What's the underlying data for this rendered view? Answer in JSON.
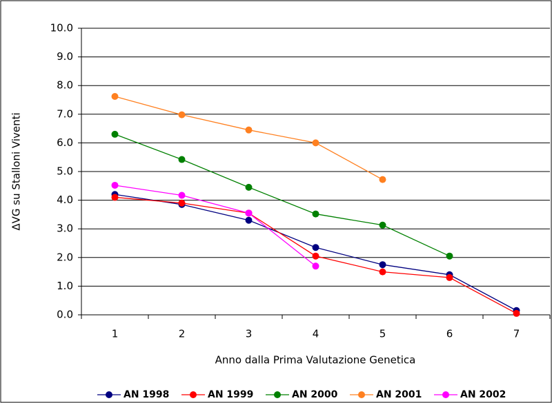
{
  "chart_data": {
    "type": "line",
    "x_label": "Anno dalla Prima Valutazione Genetica",
    "y_label": "ΔVG su Stalloni Viventi",
    "categories": [
      "1",
      "2",
      "3",
      "4",
      "5",
      "6",
      "7"
    ],
    "series": [
      {
        "name": "AN 1998",
        "color": "#000080",
        "values": [
          4.2,
          3.85,
          3.3,
          2.35,
          1.75,
          1.4,
          0.15
        ]
      },
      {
        "name": "AN 1999",
        "color": "#ff0000",
        "values": [
          4.1,
          3.9,
          3.55,
          2.05,
          1.5,
          1.3,
          0.05
        ]
      },
      {
        "name": "AN 2000",
        "color": "#008000",
        "values": [
          6.3,
          5.42,
          4.45,
          3.52,
          3.13,
          2.05,
          null
        ]
      },
      {
        "name": "AN 2001",
        "color": "#ff8020",
        "values": [
          7.62,
          6.98,
          6.45,
          6.0,
          4.72,
          null,
          null
        ]
      },
      {
        "name": "AN 2002",
        "color": "#ff00ff",
        "values": [
          4.52,
          4.17,
          3.55,
          1.7,
          null,
          null,
          null
        ]
      }
    ],
    "ylim": [
      0,
      10
    ],
    "yticks": [
      {
        "value": 0,
        "label": "0.0"
      },
      {
        "value": 1,
        "label": "1.0"
      },
      {
        "value": 2,
        "label": "2.0"
      },
      {
        "value": 3,
        "label": "3.0"
      },
      {
        "value": 4,
        "label": "4.0"
      },
      {
        "value": 5,
        "label": "5.0"
      },
      {
        "value": 6,
        "label": "6.0"
      },
      {
        "value": 7,
        "label": "7.0"
      },
      {
        "value": 8,
        "label": "8.0"
      },
      {
        "value": 9,
        "label": "9.0"
      },
      {
        "value": 10,
        "label": "10.0"
      }
    ],
    "grid": true,
    "legend": "bottom"
  }
}
